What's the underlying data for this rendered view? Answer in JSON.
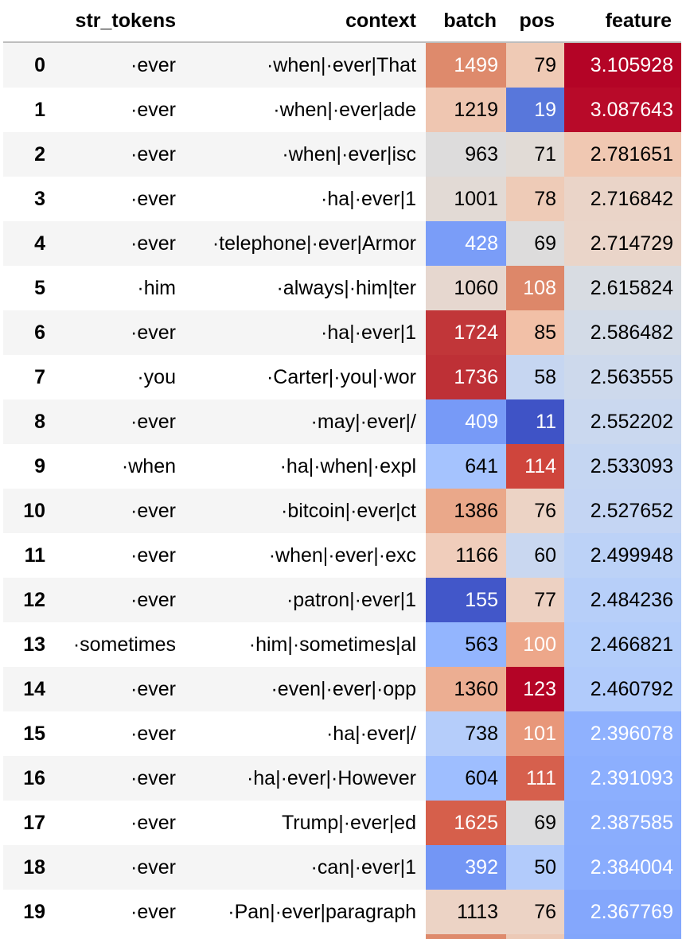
{
  "table": {
    "columns": [
      "",
      "str_tokens",
      "context",
      "batch",
      "pos",
      "feature"
    ],
    "rows": [
      {
        "index": "0",
        "str_tokens": "·ever",
        "context": "·when|·ever|That",
        "batch": "1499",
        "pos": "79",
        "feature": "3.105928",
        "batch_color": "#de8a6c",
        "pos_color": "#efcab5",
        "feature_color": "#b40426",
        "batch_light": true,
        "pos_light": false,
        "feature_light": true
      },
      {
        "index": "1",
        "str_tokens": "·ever",
        "context": "·when|·ever|ade",
        "batch": "1219",
        "pos": "19",
        "feature": "3.087643",
        "batch_color": "#efc6b1",
        "pos_color": "#5877db",
        "feature_color": "#b80a29",
        "batch_light": false,
        "pos_light": true,
        "feature_light": true
      },
      {
        "index": "2",
        "str_tokens": "·ever",
        "context": "·when|·ever|isc",
        "batch": "963",
        "pos": "71",
        "feature": "2.781651",
        "batch_color": "#dddcdc",
        "pos_color": "#e1dbd6",
        "feature_color": "#f0c8b2",
        "batch_light": false,
        "pos_light": false,
        "feature_light": false
      },
      {
        "index": "3",
        "str_tokens": "·ever",
        "context": "·ha|·ever|1",
        "batch": "1001",
        "pos": "78",
        "feature": "2.716842",
        "batch_color": "#e2dad5",
        "pos_color": "#eecbb7",
        "feature_color": "#ead4c8",
        "batch_light": false,
        "pos_light": false,
        "feature_light": false
      },
      {
        "index": "4",
        "str_tokens": "·ever",
        "context": "·telephone|·ever|Armor",
        "batch": "428",
        "pos": "69",
        "feature": "2.714729",
        "batch_color": "#7a9df8",
        "pos_color": "#dddcdc",
        "feature_color": "#ead5c9",
        "batch_light": true,
        "pos_light": false,
        "feature_light": false
      },
      {
        "index": "5",
        "str_tokens": "·him",
        "context": "·always|·him|ter",
        "batch": "1060",
        "pos": "108",
        "feature": "2.615824",
        "batch_color": "#e6d7cf",
        "pos_color": "#dd8769",
        "feature_color": "#d8dce2",
        "batch_light": false,
        "pos_light": true,
        "feature_light": false
      },
      {
        "index": "6",
        "str_tokens": "·ever",
        "context": "·ha|·ever|1",
        "batch": "1724",
        "pos": "85",
        "feature": "2.586482",
        "batch_color": "#c13639",
        "pos_color": "#f2c0a7",
        "feature_color": "#d3dbe7",
        "batch_light": true,
        "pos_light": false,
        "feature_light": false
      },
      {
        "index": "7",
        "str_tokens": "·you",
        "context": "·Carter|·you|·wor",
        "batch": "1736",
        "pos": "58",
        "feature": "2.563555",
        "batch_color": "#be3036",
        "pos_color": "#c6d6f1",
        "feature_color": "#cdd9ec",
        "batch_light": true,
        "pos_light": false,
        "feature_light": false
      },
      {
        "index": "8",
        "str_tokens": "·ever",
        "context": "·may|·ever|/",
        "batch": "409",
        "pos": "11",
        "feature": "2.552202",
        "batch_color": "#779af7",
        "pos_color": "#3f53c6",
        "feature_color": "#cad8ef",
        "batch_light": true,
        "pos_light": true,
        "feature_light": false
      },
      {
        "index": "9",
        "str_tokens": "·when",
        "context": "·ha|·when|·expl",
        "batch": "641",
        "pos": "114",
        "feature": "2.533093",
        "batch_color": "#a5c3fe",
        "pos_color": "#cf453c",
        "feature_color": "#c5d6f2",
        "batch_light": false,
        "pos_light": true,
        "feature_light": false
      },
      {
        "index": "10",
        "str_tokens": "·ever",
        "context": "·bitcoin|·ever|ct",
        "batch": "1386",
        "pos": "76",
        "feature": "2.527652",
        "batch_color": "#eaa88a",
        "pos_color": "#ecd3c5",
        "feature_color": "#c4d5f3",
        "batch_light": false,
        "pos_light": false,
        "feature_light": false
      },
      {
        "index": "11",
        "str_tokens": "·ever",
        "context": "·when|·ever|·exc",
        "batch": "1166",
        "pos": "60",
        "feature": "2.499948",
        "batch_color": "#f0cdbb",
        "pos_color": "#c9d7f0",
        "feature_color": "#bcd2f7",
        "batch_light": false,
        "pos_light": false,
        "feature_light": false
      },
      {
        "index": "12",
        "str_tokens": "·ever",
        "context": "·patron|·ever|1",
        "batch": "155",
        "pos": "77",
        "feature": "2.484236",
        "batch_color": "#4257c9",
        "pos_color": "#edd1c2",
        "feature_color": "#b7cff9",
        "batch_light": true,
        "pos_light": false,
        "feature_light": false
      },
      {
        "index": "13",
        "str_tokens": "·sometimes",
        "context": "·him|·sometimes|al",
        "batch": "563",
        "pos": "100",
        "feature": "2.466821",
        "batch_color": "#93b5fe",
        "pos_color": "#eda78a",
        "feature_color": "#b3cdfa",
        "batch_light": false,
        "pos_light": true,
        "feature_light": false
      },
      {
        "index": "14",
        "str_tokens": "·ever",
        "context": "·even|·ever|·opp",
        "batch": "1360",
        "pos": "123",
        "feature": "2.460792",
        "batch_color": "#ecae92",
        "pos_color": "#b40426",
        "feature_color": "#b1cbfb",
        "batch_light": false,
        "pos_light": true,
        "feature_light": false
      },
      {
        "index": "15",
        "str_tokens": "·ever",
        "context": "·ha|·ever|/",
        "batch": "738",
        "pos": "101",
        "feature": "2.396078",
        "batch_color": "#b5cdfa",
        "pos_color": "#e8977a",
        "feature_color": "#8fb1fe",
        "batch_light": false,
        "pos_light": true,
        "feature_light": true
      },
      {
        "index": "16",
        "str_tokens": "·ever",
        "context": "·ha|·ever|·However",
        "batch": "604",
        "pos": "111",
        "feature": "2.391093",
        "batch_color": "#9ebeff",
        "pos_color": "#d6604d",
        "feature_color": "#8caffe",
        "batch_light": false,
        "pos_light": true,
        "feature_light": true
      },
      {
        "index": "17",
        "str_tokens": "·ever",
        "context": "Trump|·ever|ed",
        "batch": "1625",
        "pos": "69",
        "feature": "2.387585",
        "batch_color": "#d65f4b",
        "pos_color": "#dcdcdd",
        "feature_color": "#8aadfd",
        "batch_light": true,
        "pos_light": false,
        "feature_light": true
      },
      {
        "index": "18",
        "str_tokens": "·ever",
        "context": "·can|·ever|1",
        "batch": "392",
        "pos": "50",
        "feature": "2.384004",
        "batch_color": "#7396f5",
        "pos_color": "#b2cbfb",
        "feature_color": "#89acfd",
        "batch_light": true,
        "pos_light": false,
        "feature_light": true
      },
      {
        "index": "19",
        "str_tokens": "·ever",
        "context": "·Pan|·ever|paragraph",
        "batch": "1113",
        "pos": "76",
        "feature": "2.367769",
        "batch_color": "#ecd3c5",
        "pos_color": "#ecd3c5",
        "feature_color": "#84a7fc",
        "batch_light": false,
        "pos_light": false,
        "feature_light": true
      }
    ],
    "tail_colors": {
      "batch": "#de8a6c",
      "pos": "#ecc9b6",
      "feature": "#82a6fb"
    }
  }
}
